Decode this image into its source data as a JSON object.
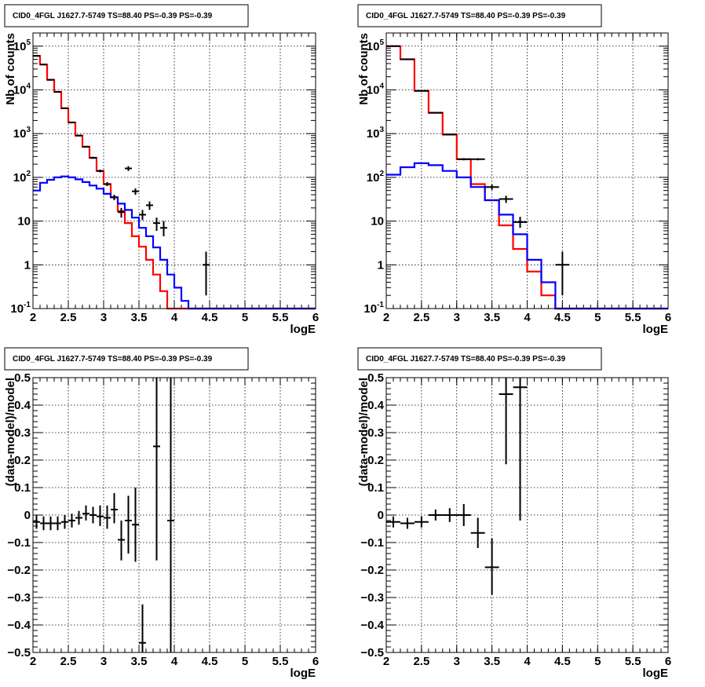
{
  "panels": [
    {
      "title": "CID0_4FGL J1627.7-5749 TS=88.40 PS=-0.39 PS=-0.39",
      "xlabel": "logE",
      "ylabel": "Nb of counts"
    },
    {
      "title": "CID0_4FGL J1627.7-5749 TS=88.40 PS=-0.39 PS=-0.39",
      "xlabel": "logE",
      "ylabel": "Nb of counts"
    },
    {
      "title": "CID0_4FGL J1627.7-5749 TS=88.40 PS=-0.39 PS=-0.39",
      "xlabel": "logE",
      "ylabel": "(data-model)/model"
    },
    {
      "title": "CID0_4FGL J1627.7-5749 TS=88.40 PS=-0.39 PS=-0.39",
      "xlabel": "logE",
      "ylabel": "(data-model)/model"
    }
  ],
  "chart_data": [
    {
      "type": "line",
      "scale": "log",
      "xlim": [
        2,
        6
      ],
      "ylim": [
        0.1,
        200000
      ],
      "xticks": [
        "2",
        "2.5",
        "3",
        "3.5",
        "4",
        "4.5",
        "5",
        "5.5",
        "6"
      ],
      "yticks": [
        "10^-1",
        "1",
        "10",
        "10^2",
        "10^3",
        "10^4",
        "10^5"
      ],
      "grid": true,
      "series": [
        {
          "color": "#ff0000",
          "style": "step",
          "edges": [
            2,
            2.1,
            2.2,
            2.3,
            2.4,
            2.5,
            2.6,
            2.7,
            2.8,
            2.9,
            3,
            3.1,
            3.2,
            3.3,
            3.4,
            3.5,
            3.6,
            3.7,
            3.8,
            3.9,
            4,
            4.1,
            4.2,
            4.3,
            4.4,
            4.5,
            4.6,
            4.7,
            4.8,
            4.9,
            5,
            5.1,
            5.2,
            5.3,
            5.4,
            5.5,
            5.6,
            5.7,
            5.8,
            5.9,
            6
          ],
          "values": [
            60000,
            38000,
            17000,
            9000,
            3800,
            1800,
            900,
            500,
            280,
            140,
            70,
            35,
            17,
            9,
            4.5,
            2.6,
            1.3,
            0.6,
            0.25,
            0.1,
            0.1,
            0.1,
            0.1,
            0.1,
            0.1,
            0.1,
            0.1,
            0.1,
            0.1,
            0.1,
            0.1,
            0.1,
            0.1,
            0.1,
            0.1,
            0.1,
            0.1,
            0.1,
            0.1,
            0.1
          ]
        },
        {
          "color": "#0000ff",
          "style": "step",
          "edges": [
            2,
            2.1,
            2.2,
            2.3,
            2.4,
            2.5,
            2.6,
            2.7,
            2.8,
            2.9,
            3,
            3.1,
            3.2,
            3.3,
            3.4,
            3.5,
            3.6,
            3.7,
            3.8,
            3.9,
            4,
            4.1,
            4.2,
            4.3,
            4.4,
            4.5,
            4.6,
            4.7,
            4.8,
            4.9,
            5,
            5.1,
            5.2,
            5.3,
            5.4,
            5.5,
            5.6,
            5.7,
            5.8,
            5.9,
            6
          ],
          "values": [
            50,
            75,
            88,
            100,
            105,
            100,
            90,
            78,
            65,
            55,
            42,
            35,
            25,
            18,
            12,
            7,
            4.5,
            2.5,
            1.3,
            0.6,
            0.3,
            0.15,
            0.1,
            0.1,
            0.1,
            0.1,
            0.1,
            0.1,
            0.1,
            0.1,
            0.1,
            0.1,
            0.1,
            0.1,
            0.1,
            0.1,
            0.1,
            0.1,
            0.1,
            0.1
          ]
        },
        {
          "color": "#000000",
          "style": "errorbar",
          "points": [
            {
              "x": 2.05,
              "y": 60000,
              "xerr": 0.05,
              "ylo": 59500,
              "yhi": 60500
            },
            {
              "x": 2.15,
              "y": 38000,
              "xerr": 0.05,
              "ylo": 37600,
              "yhi": 38400
            },
            {
              "x": 2.25,
              "y": 17000,
              "xerr": 0.05,
              "ylo": 16700,
              "yhi": 17300
            },
            {
              "x": 2.35,
              "y": 9000,
              "xerr": 0.05,
              "ylo": 8800,
              "yhi": 9200
            },
            {
              "x": 2.45,
              "y": 3800,
              "xerr": 0.05,
              "ylo": 3700,
              "yhi": 3900
            },
            {
              "x": 2.55,
              "y": 1800,
              "xerr": 0.05,
              "ylo": 1750,
              "yhi": 1850
            },
            {
              "x": 2.65,
              "y": 900,
              "xerr": 0.05,
              "ylo": 870,
              "yhi": 930
            },
            {
              "x": 2.75,
              "y": 500,
              "xerr": 0.05,
              "ylo": 480,
              "yhi": 520
            },
            {
              "x": 2.85,
              "y": 280,
              "xerr": 0.05,
              "ylo": 265,
              "yhi": 295
            },
            {
              "x": 2.95,
              "y": 140,
              "xerr": 0.05,
              "ylo": 130,
              "yhi": 150
            },
            {
              "x": 3.05,
              "y": 70,
              "xerr": 0.05,
              "ylo": 63,
              "yhi": 78
            },
            {
              "x": 3.15,
              "y": 35,
              "xerr": 0.05,
              "ylo": 30,
              "yhi": 40
            },
            {
              "x": 3.25,
              "y": 16,
              "xerr": 0.05,
              "ylo": 12,
              "yhi": 20
            },
            {
              "x": 3.35,
              "y": 160,
              "xerr": 0.05,
              "ylo": 140,
              "yhi": 180
            },
            {
              "x": 3.45,
              "y": 48,
              "xerr": 0.05,
              "ylo": 40,
              "yhi": 56
            },
            {
              "x": 3.55,
              "y": 14,
              "xerr": 0.05,
              "ylo": 10.5,
              "yhi": 18
            },
            {
              "x": 3.65,
              "y": 23,
              "xerr": 0.05,
              "ylo": 18,
              "yhi": 28
            },
            {
              "x": 3.75,
              "y": 9,
              "xerr": 0.05,
              "ylo": 6,
              "yhi": 12
            },
            {
              "x": 3.85,
              "y": 7,
              "xerr": 0.05,
              "ylo": 4.5,
              "yhi": 10
            },
            {
              "x": 4.45,
              "y": 1,
              "xerr": 0.05,
              "ylo": 0.2,
              "yhi": 2
            }
          ]
        }
      ]
    },
    {
      "type": "line",
      "scale": "log",
      "xlim": [
        2,
        6
      ],
      "ylim": [
        0.1,
        200000
      ],
      "xticks": [
        "2",
        "2.5",
        "3",
        "3.5",
        "4",
        "4.5",
        "5",
        "5.5",
        "6"
      ],
      "yticks": [
        "10^-1",
        "1",
        "10",
        "10^2",
        "10^3",
        "10^4",
        "10^5"
      ],
      "grid": true,
      "series": [
        {
          "color": "#ff0000",
          "style": "step",
          "edges": [
            2,
            2.2,
            2.4,
            2.6,
            2.8,
            3,
            3.2,
            3.4,
            3.6,
            3.8,
            4,
            4.2,
            4.4,
            4.6,
            4.8,
            5,
            5.2,
            5.4,
            5.6,
            5.8,
            6
          ],
          "values": [
            100000,
            50000,
            9500,
            3000,
            950,
            260,
            70,
            30,
            8,
            2.3,
            0.7,
            0.2,
            0.1,
            0.1,
            0.1,
            0.1,
            0.1,
            0.1,
            0.1,
            0.1
          ]
        },
        {
          "color": "#0000ff",
          "style": "step",
          "edges": [
            2,
            2.2,
            2.4,
            2.6,
            2.8,
            3,
            3.2,
            3.4,
            3.6,
            3.8,
            4,
            4.2,
            4.4,
            4.6,
            4.8,
            5,
            5.2,
            5.4,
            5.6,
            5.8,
            6
          ],
          "values": [
            115,
            170,
            210,
            190,
            140,
            100,
            60,
            30,
            14,
            5,
            1.3,
            0.4,
            0.1,
            0.1,
            0.1,
            0.1,
            0.1,
            0.1,
            0.1,
            0.1
          ]
        },
        {
          "color": "#000000",
          "style": "errorbar",
          "points": [
            {
              "x": 2.1,
              "y": 100000,
              "xerr": 0.1,
              "ylo": 99500,
              "yhi": 100500
            },
            {
              "x": 2.3,
              "y": 50000,
              "xerr": 0.1,
              "ylo": 49600,
              "yhi": 50400
            },
            {
              "x": 2.5,
              "y": 9500,
              "xerr": 0.1,
              "ylo": 9300,
              "yhi": 9700
            },
            {
              "x": 2.7,
              "y": 3000,
              "xerr": 0.1,
              "ylo": 2950,
              "yhi": 3050
            },
            {
              "x": 2.9,
              "y": 950,
              "xerr": 0.1,
              "ylo": 920,
              "yhi": 980
            },
            {
              "x": 3.1,
              "y": 260,
              "xerr": 0.1,
              "ylo": 245,
              "yhi": 275
            },
            {
              "x": 3.3,
              "y": 260,
              "xerr": 0.1,
              "ylo": 245,
              "yhi": 275
            },
            {
              "x": 3.5,
              "y": 60,
              "xerr": 0.1,
              "ylo": 52,
              "yhi": 68
            },
            {
              "x": 3.7,
              "y": 32,
              "xerr": 0.1,
              "ylo": 26,
              "yhi": 38
            },
            {
              "x": 3.9,
              "y": 9.5,
              "xerr": 0.1,
              "ylo": 7,
              "yhi": 12.5
            },
            {
              "x": 4.5,
              "y": 1,
              "xerr": 0.1,
              "ylo": 0.2,
              "yhi": 2
            }
          ]
        }
      ]
    },
    {
      "type": "scatter",
      "scale": "linear",
      "xlim": [
        2,
        6
      ],
      "ylim": [
        -0.5,
        0.5
      ],
      "xticks": [
        "2",
        "2.5",
        "3",
        "3.5",
        "4",
        "4.5",
        "5",
        "5.5",
        "6"
      ],
      "yticks": [
        "-0.5",
        "-0.4",
        "-0.3",
        "-0.2",
        "-0.1",
        "0",
        "0.1",
        "0.2",
        "0.3",
        "0.4",
        "0.5"
      ],
      "grid": true,
      "series": [
        {
          "color": "#000000",
          "style": "errorbar",
          "points": [
            {
              "x": 2.05,
              "y": -0.025,
              "xerr": 0.05,
              "ylo": -0.05,
              "yhi": 0.0
            },
            {
              "x": 2.15,
              "y": -0.03,
              "xerr": 0.05,
              "ylo": -0.055,
              "yhi": -0.005
            },
            {
              "x": 2.25,
              "y": -0.03,
              "xerr": 0.05,
              "ylo": -0.055,
              "yhi": -0.005
            },
            {
              "x": 2.35,
              "y": -0.03,
              "xerr": 0.05,
              "ylo": -0.055,
              "yhi": -0.005
            },
            {
              "x": 2.45,
              "y": -0.025,
              "xerr": 0.05,
              "ylo": -0.05,
              "yhi": 0.0
            },
            {
              "x": 2.55,
              "y": -0.02,
              "xerr": 0.05,
              "ylo": -0.045,
              "yhi": 0.005
            },
            {
              "x": 2.65,
              "y": -0.01,
              "xerr": 0.05,
              "ylo": -0.035,
              "yhi": 0.015
            },
            {
              "x": 2.75,
              "y": 0.005,
              "xerr": 0.05,
              "ylo": -0.02,
              "yhi": 0.035
            },
            {
              "x": 2.85,
              "y": 0.0,
              "xerr": 0.05,
              "ylo": -0.03,
              "yhi": 0.03
            },
            {
              "x": 2.95,
              "y": -0.005,
              "xerr": 0.05,
              "ylo": -0.04,
              "yhi": 0.035
            },
            {
              "x": 3.05,
              "y": -0.01,
              "xerr": 0.05,
              "ylo": -0.05,
              "yhi": 0.035
            },
            {
              "x": 3.15,
              "y": 0.02,
              "xerr": 0.05,
              "ylo": -0.03,
              "yhi": 0.08
            },
            {
              "x": 3.25,
              "y": -0.09,
              "xerr": 0.05,
              "ylo": -0.165,
              "yhi": -0.02
            },
            {
              "x": 3.35,
              "y": -0.02,
              "xerr": 0.05,
              "ylo": -0.14,
              "yhi": 0.07
            },
            {
              "x": 3.45,
              "y": -0.035,
              "xerr": 0.05,
              "ylo": -0.17,
              "yhi": 0.1
            },
            {
              "x": 3.55,
              "y": -0.465,
              "xerr": 0.05,
              "ylo": -0.5,
              "yhi": -0.325
            },
            {
              "x": 3.75,
              "y": 0.25,
              "xerr": 0.05,
              "ylo": -0.165,
              "yhi": 0.5
            },
            {
              "x": 3.95,
              "y": -0.02,
              "xerr": 0.05,
              "ylo": -0.5,
              "yhi": 0.5
            }
          ]
        }
      ]
    },
    {
      "type": "scatter",
      "scale": "linear",
      "xlim": [
        2,
        6
      ],
      "ylim": [
        -0.5,
        0.5
      ],
      "xticks": [
        "2",
        "2.5",
        "3",
        "3.5",
        "4",
        "4.5",
        "5",
        "5.5",
        "6"
      ],
      "yticks": [
        "-0.5",
        "-0.4",
        "-0.3",
        "-0.2",
        "-0.1",
        "0",
        "0.1",
        "0.2",
        "0.3",
        "0.4",
        "0.5"
      ],
      "grid": true,
      "series": [
        {
          "color": "#000000",
          "style": "errorbar",
          "points": [
            {
              "x": 2.1,
              "y": -0.025,
              "xerr": 0.1,
              "ylo": -0.045,
              "yhi": -0.005
            },
            {
              "x": 2.3,
              "y": -0.03,
              "xerr": 0.1,
              "ylo": -0.05,
              "yhi": -0.01
            },
            {
              "x": 2.5,
              "y": -0.025,
              "xerr": 0.1,
              "ylo": -0.045,
              "yhi": -0.005
            },
            {
              "x": 2.7,
              "y": 0.0,
              "xerr": 0.1,
              "ylo": -0.02,
              "yhi": 0.02
            },
            {
              "x": 2.9,
              "y": 0.0,
              "xerr": 0.1,
              "ylo": -0.025,
              "yhi": 0.025
            },
            {
              "x": 3.1,
              "y": 0.0,
              "xerr": 0.1,
              "ylo": -0.04,
              "yhi": 0.04
            },
            {
              "x": 3.3,
              "y": -0.065,
              "xerr": 0.1,
              "ylo": -0.12,
              "yhi": -0.01
            },
            {
              "x": 3.5,
              "y": -0.19,
              "xerr": 0.1,
              "ylo": -0.29,
              "yhi": -0.085
            },
            {
              "x": 3.7,
              "y": 0.44,
              "xerr": 0.1,
              "ylo": 0.185,
              "yhi": 0.5
            },
            {
              "x": 3.9,
              "y": 0.465,
              "xerr": 0.1,
              "ylo": -0.02,
              "yhi": 0.5
            }
          ]
        }
      ]
    }
  ]
}
